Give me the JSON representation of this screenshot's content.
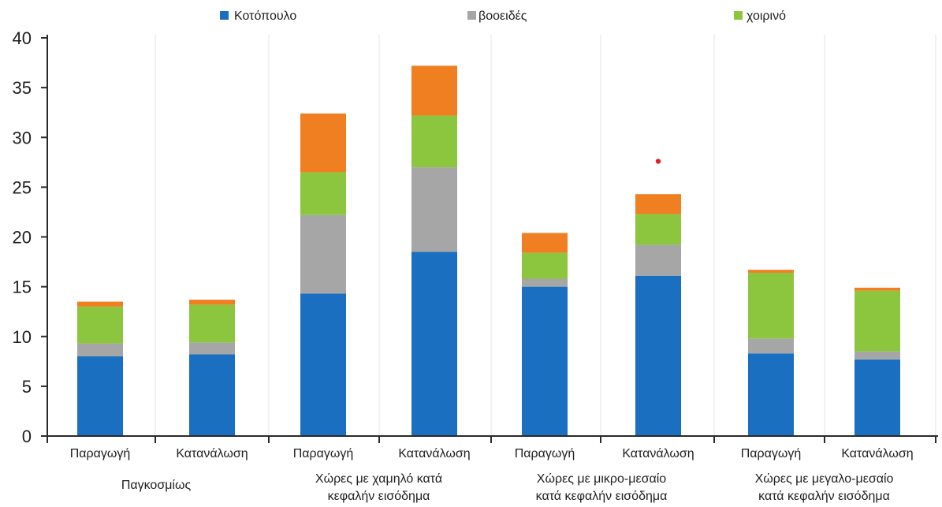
{
  "chart_data": {
    "type": "bar",
    "stacked": true,
    "title": "",
    "xlabel": "",
    "ylabel": "",
    "ylim": [
      0,
      40
    ],
    "yticks": [
      0,
      5,
      10,
      15,
      20,
      25,
      30,
      35,
      40
    ],
    "grid": "vertical",
    "legend_position": "top",
    "categories": [
      "Παραγωγή",
      "Κατανάλωση",
      "Παραγωγή",
      "Κατανάλωση",
      "Παραγωγή",
      "Κατανάλωση",
      "Παραγωγή",
      "Κατανάλωση"
    ],
    "groups": [
      {
        "label": [
          "Παγκοσμίως"
        ],
        "categories": [
          0,
          1
        ]
      },
      {
        "label": [
          "Χώρες με χαμηλό κατά",
          "κεφαλήν εισόδημα"
        ],
        "categories": [
          2,
          3
        ]
      },
      {
        "label": [
          "Χώρες με μικρο-μεσαίο",
          "κατά κεφαλήν εισόδημα"
        ],
        "categories": [
          4,
          5
        ]
      },
      {
        "label": [
          "Χώρες με μεγαλο-μεσαίο",
          "κατά κεφαλήν εισόδημα"
        ],
        "categories": [
          6,
          7
        ]
      }
    ],
    "series": [
      {
        "name": "Κοτόπουλο",
        "color": "#1a6fc0",
        "values": [
          8.0,
          8.2,
          14.3,
          18.5,
          15.0,
          16.1,
          8.3,
          7.7
        ]
      },
      {
        "name": "βοοειδές",
        "color": "#a6a6a6",
        "values": [
          1.3,
          1.2,
          7.9,
          8.5,
          0.8,
          3.1,
          1.5,
          0.8
        ]
      },
      {
        "name": "χοιρινό",
        "color": "#8cc63f",
        "values": [
          3.7,
          3.8,
          4.3,
          5.2,
          2.6,
          3.1,
          6.6,
          6.1
        ]
      },
      {
        "name": "",
        "color": "#f07f22",
        "values": [
          0.5,
          0.5,
          5.9,
          5.0,
          2.0,
          2.0,
          0.3,
          0.3
        ]
      }
    ],
    "annotations": [
      {
        "type": "dot",
        "color": "#e5202a",
        "category": 5,
        "value": 27.6
      }
    ]
  }
}
